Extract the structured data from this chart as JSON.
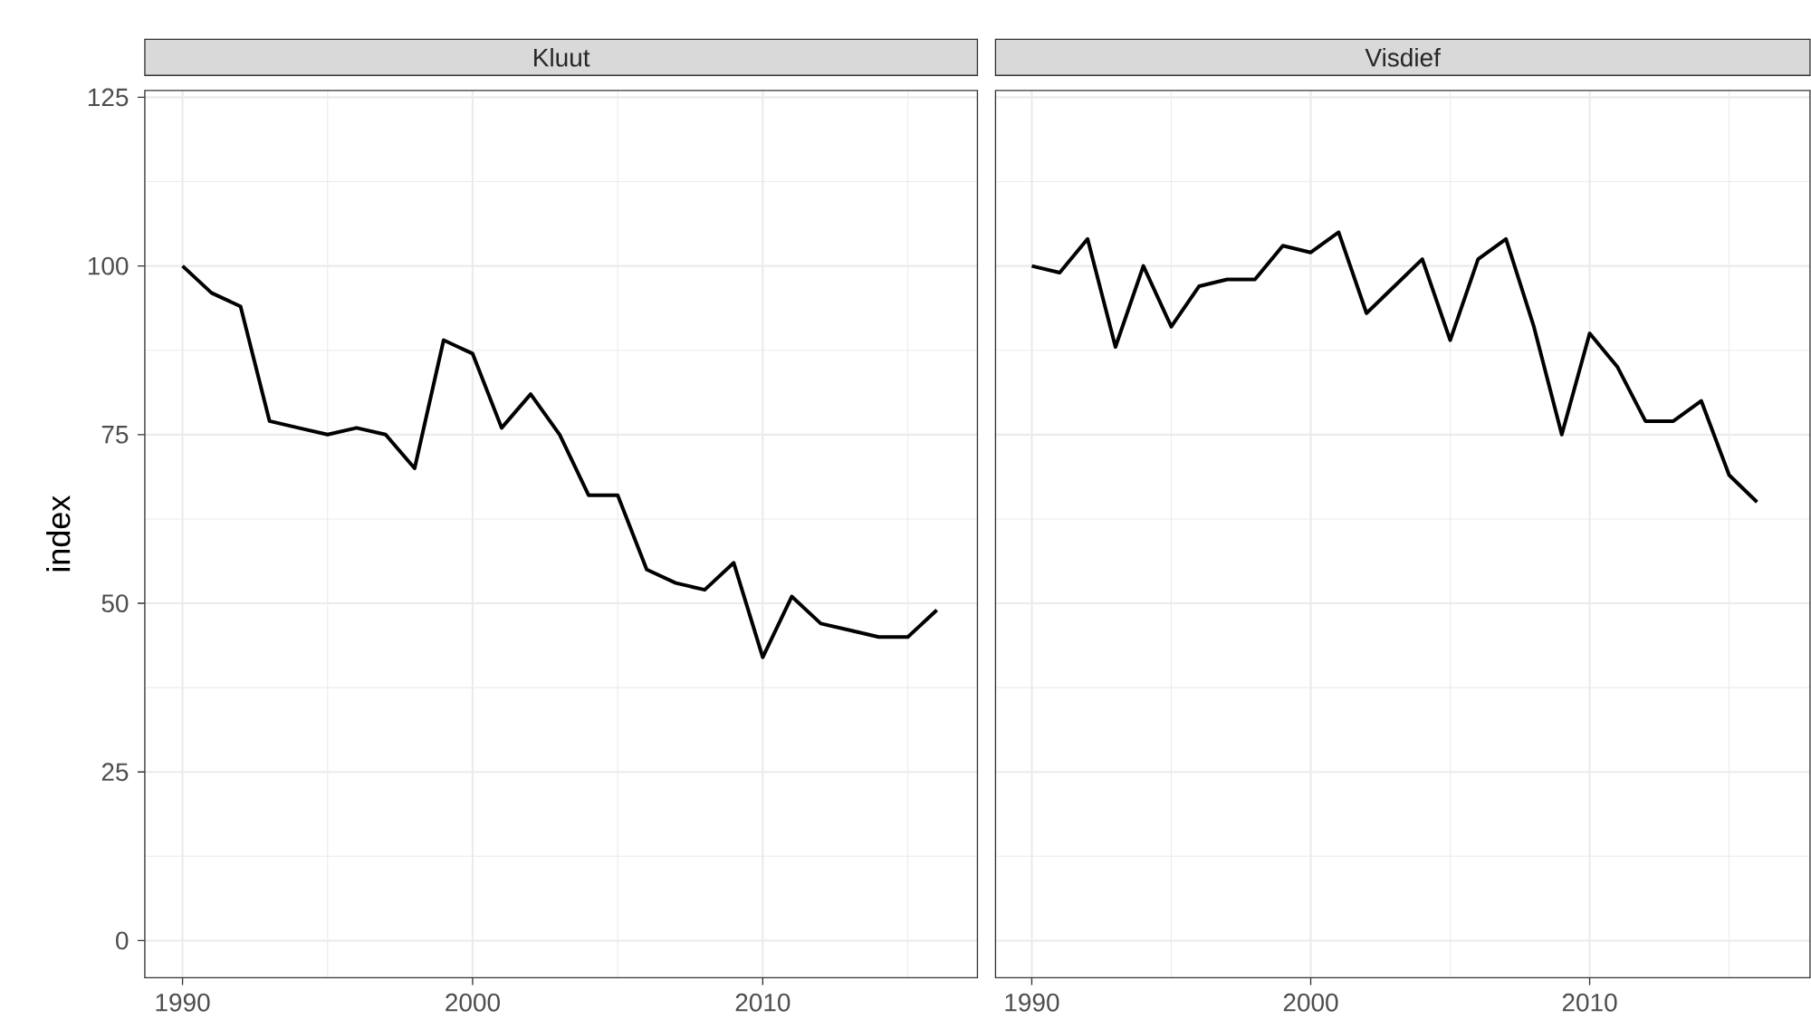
{
  "chart_data": [
    {
      "type": "line",
      "title": "Kluut",
      "ylabel": "index",
      "color": "#000000",
      "grid": true,
      "x": [
        1990,
        1991,
        1992,
        1993,
        1994,
        1995,
        1996,
        1997,
        1998,
        1999,
        2000,
        2001,
        2002,
        2003,
        2004,
        2005,
        2006,
        2007,
        2008,
        2009,
        2010,
        2011,
        2012,
        2013,
        2014,
        2015,
        2016
      ],
      "values": [
        100,
        96,
        94,
        77,
        76,
        75,
        76,
        75,
        70,
        89,
        87,
        76,
        81,
        75,
        66,
        66,
        55,
        53,
        52,
        56,
        42,
        51,
        47,
        46,
        45,
        45,
        49
      ],
      "xlim": [
        1988.7,
        2017.4
      ],
      "ylim": [
        -5.5,
        126
      ],
      "xticks": [
        1990,
        2000,
        2010
      ],
      "yticks": [
        0,
        25,
        50,
        75,
        100,
        125
      ]
    },
    {
      "type": "line",
      "title": "Visdief",
      "color": "#000000",
      "grid": true,
      "tick_labels": "x",
      "x": [
        1990,
        1991,
        1992,
        1993,
        1994,
        1995,
        1996,
        1997,
        1998,
        1999,
        2000,
        2001,
        2002,
        2003,
        2004,
        2005,
        2006,
        2007,
        2008,
        2009,
        2010,
        2011,
        2012,
        2013,
        2014,
        2015,
        2016
      ],
      "values": [
        100,
        99,
        104,
        88,
        100,
        91,
        97,
        98,
        98,
        103,
        102,
        105,
        93,
        97,
        101,
        89,
        101,
        104,
        91,
        75,
        90,
        85,
        77,
        77,
        80,
        69,
        65
      ],
      "xlim": [
        1988.7,
        2017.9
      ],
      "ylim": [
        -5.5,
        126
      ],
      "xticks": [
        1990,
        2000,
        2010
      ],
      "yticks": [
        0,
        25,
        50,
        75,
        100,
        125
      ]
    }
  ]
}
